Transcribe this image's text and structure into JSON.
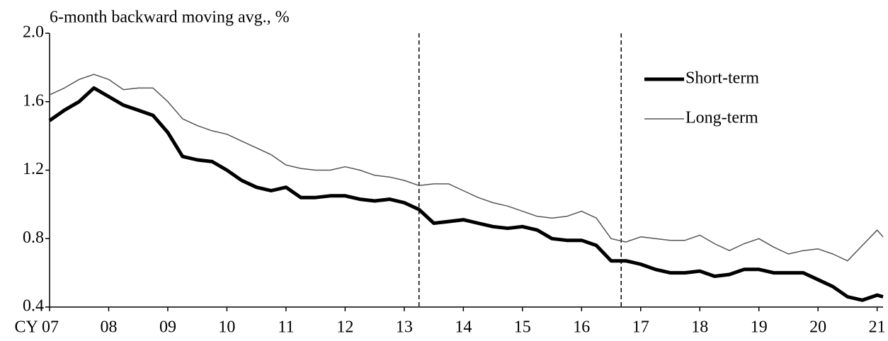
{
  "chart_data": {
    "type": "line",
    "title": "6-month backward moving avg., %",
    "x": [
      2007.0,
      2007.25,
      2007.5,
      2007.75,
      2008.0,
      2008.25,
      2008.5,
      2008.75,
      2009.0,
      2009.25,
      2009.5,
      2009.75,
      2010.0,
      2010.25,
      2010.5,
      2010.75,
      2011.0,
      2011.25,
      2011.5,
      2011.75,
      2012.0,
      2012.25,
      2012.5,
      2012.75,
      2013.0,
      2013.25,
      2013.5,
      2013.75,
      2014.0,
      2014.25,
      2014.5,
      2014.75,
      2015.0,
      2015.25,
      2015.5,
      2015.75,
      2016.0,
      2016.25,
      2016.5,
      2016.75,
      2017.0,
      2017.25,
      2017.5,
      2017.75,
      2018.0,
      2018.25,
      2018.5,
      2018.75,
      2019.0,
      2019.25,
      2019.5,
      2019.75,
      2020.0,
      2020.25,
      2020.5,
      2020.75,
      2021.0,
      2021.1
    ],
    "series": [
      {
        "name": "Short-term",
        "color": "#000000",
        "width": 5,
        "values": [
          1.49,
          1.55,
          1.6,
          1.68,
          1.63,
          1.58,
          1.55,
          1.52,
          1.42,
          1.28,
          1.26,
          1.25,
          1.2,
          1.14,
          1.1,
          1.08,
          1.1,
          1.04,
          1.04,
          1.05,
          1.05,
          1.03,
          1.02,
          1.03,
          1.01,
          0.97,
          0.89,
          0.9,
          0.91,
          0.89,
          0.87,
          0.86,
          0.87,
          0.85,
          0.8,
          0.79,
          0.79,
          0.76,
          0.67,
          0.67,
          0.65,
          0.62,
          0.6,
          0.6,
          0.61,
          0.58,
          0.59,
          0.62,
          0.62,
          0.6,
          0.6,
          0.6,
          0.56,
          0.52,
          0.46,
          0.44,
          0.47,
          0.46
        ]
      },
      {
        "name": "Long-term",
        "color": "#555555",
        "width": 1.5,
        "values": [
          1.64,
          1.68,
          1.73,
          1.76,
          1.73,
          1.67,
          1.68,
          1.68,
          1.6,
          1.5,
          1.46,
          1.43,
          1.41,
          1.37,
          1.33,
          1.29,
          1.23,
          1.21,
          1.2,
          1.2,
          1.22,
          1.2,
          1.17,
          1.16,
          1.14,
          1.11,
          1.12,
          1.12,
          1.08,
          1.04,
          1.01,
          0.99,
          0.96,
          0.93,
          0.92,
          0.93,
          0.96,
          0.92,
          0.8,
          0.78,
          0.81,
          0.8,
          0.79,
          0.79,
          0.82,
          0.77,
          0.73,
          0.77,
          0.8,
          0.75,
          0.71,
          0.73,
          0.74,
          0.71,
          0.67,
          0.76,
          0.85,
          0.81
        ]
      }
    ],
    "xlim": [
      2007,
      2021.1
    ],
    "xticks": [
      {
        "value": 2007,
        "label": "CY 07"
      },
      {
        "value": 2008,
        "label": "08"
      },
      {
        "value": 2009,
        "label": "09"
      },
      {
        "value": 2010,
        "label": "10"
      },
      {
        "value": 2011,
        "label": "11"
      },
      {
        "value": 2012,
        "label": "12"
      },
      {
        "value": 2013,
        "label": "13"
      },
      {
        "value": 2014,
        "label": "14"
      },
      {
        "value": 2015,
        "label": "15"
      },
      {
        "value": 2016,
        "label": "16"
      },
      {
        "value": 2017,
        "label": "17"
      },
      {
        "value": 2018,
        "label": "18"
      },
      {
        "value": 2019,
        "label": "19"
      },
      {
        "value": 2020,
        "label": "20"
      },
      {
        "value": 2021,
        "label": "21"
      }
    ],
    "ylim": [
      0.4,
      2.0
    ],
    "yticks": [
      0.4,
      0.8,
      1.2,
      1.6,
      {
        "value": 2.0,
        "label": "2.0"
      }
    ],
    "vlines": [
      2013.25,
      2016.67
    ],
    "grid": false,
    "legend": "upper-right"
  }
}
